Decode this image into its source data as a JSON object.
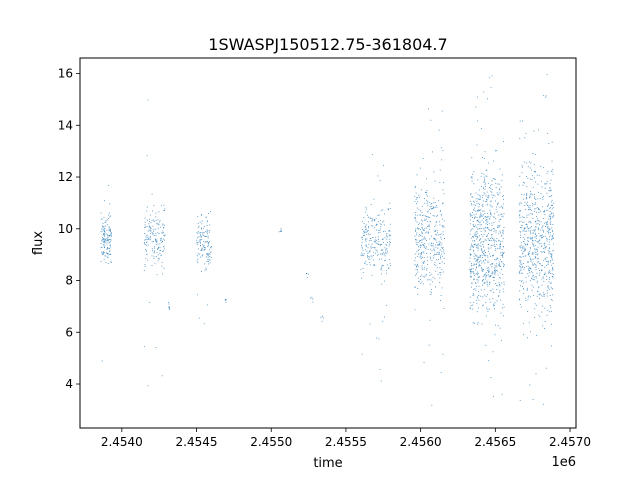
{
  "chart_data": {
    "type": "scatter",
    "title": "1SWASPJ150512.75-361804.7",
    "xlabel": "time",
    "ylabel": "flux",
    "x_offset_label": "1e6",
    "xlim": [
      2453720,
      2457040
    ],
    "ylim": [
      2.3,
      16.6
    ],
    "x_ticks": [
      {
        "value": 2454000,
        "label": "2.4540"
      },
      {
        "value": 2454500,
        "label": "2.4545"
      },
      {
        "value": 2455000,
        "label": "2.4550"
      },
      {
        "value": 2455500,
        "label": "2.4555"
      },
      {
        "value": 2456000,
        "label": "2.4560"
      },
      {
        "value": 2456500,
        "label": "2.4565"
      },
      {
        "value": 2457000,
        "label": "2.4570"
      }
    ],
    "y_ticks": [
      {
        "value": 4,
        "label": "4"
      },
      {
        "value": 6,
        "label": "6"
      },
      {
        "value": 8,
        "label": "8"
      },
      {
        "value": 10,
        "label": "10"
      },
      {
        "value": 12,
        "label": "12"
      },
      {
        "value": 14,
        "label": "14"
      },
      {
        "value": 16,
        "label": "16"
      }
    ],
    "grid": false,
    "series_color": "#1f77b4",
    "clusters": [
      {
        "t_start": 2453860,
        "t_end": 2453930,
        "flux_center": 9.6,
        "flux_low": 7.8,
        "flux_high": 11.3,
        "outlier_low": 3.6,
        "outlier_high": 15.9,
        "density": 140
      },
      {
        "t_start": 2454150,
        "t_end": 2454290,
        "flux_center": 9.7,
        "flux_low": 7.4,
        "flux_high": 11.9,
        "outlier_low": 3.2,
        "outlier_high": 15.8,
        "density": 170
      },
      {
        "t_start": 2454310,
        "t_end": 2454320,
        "flux_center": 7.0,
        "flux_low": 6.6,
        "flux_high": 7.3,
        "outlier_low": 6.6,
        "outlier_high": 7.3,
        "density": 8
      },
      {
        "t_start": 2454500,
        "t_end": 2454600,
        "flux_center": 9.4,
        "flux_low": 7.6,
        "flux_high": 11.5,
        "outlier_low": 6.2,
        "outlier_high": 11.8,
        "density": 130
      },
      {
        "t_start": 2454690,
        "t_end": 2454700,
        "flux_center": 7.2,
        "flux_low": 6.9,
        "flux_high": 7.5,
        "outlier_low": 6.9,
        "outlier_high": 7.6,
        "density": 5
      },
      {
        "t_start": 2455050,
        "t_end": 2455070,
        "flux_center": 9.9,
        "flux_low": 9.6,
        "flux_high": 10.2,
        "outlier_low": 9.6,
        "outlier_high": 10.2,
        "density": 6
      },
      {
        "t_start": 2455230,
        "t_end": 2455250,
        "flux_center": 8.3,
        "flux_low": 7.9,
        "flux_high": 8.7,
        "outlier_low": 7.9,
        "outlier_high": 8.7,
        "density": 5
      },
      {
        "t_start": 2455260,
        "t_end": 2455280,
        "flux_center": 7.3,
        "flux_low": 7.0,
        "flux_high": 7.6,
        "outlier_low": 7.0,
        "outlier_high": 7.6,
        "density": 4
      },
      {
        "t_start": 2455330,
        "t_end": 2455350,
        "flux_center": 6.5,
        "flux_low": 6.2,
        "flux_high": 6.8,
        "outlier_low": 6.2,
        "outlier_high": 6.8,
        "density": 4
      },
      {
        "t_start": 2455600,
        "t_end": 2455800,
        "flux_center": 9.5,
        "flux_low": 7.0,
        "flux_high": 12.2,
        "outlier_low": 3.5,
        "outlier_high": 14.2,
        "density": 240
      },
      {
        "t_start": 2455960,
        "t_end": 2456160,
        "flux_center": 9.6,
        "flux_low": 5.0,
        "flux_high": 13.5,
        "outlier_low": 3.0,
        "outlier_high": 15.0,
        "density": 380
      },
      {
        "t_start": 2456330,
        "t_end": 2456560,
        "flux_center": 9.5,
        "flux_low": 4.5,
        "flux_high": 15.8,
        "outlier_low": 3.3,
        "outlier_high": 16.0,
        "density": 700
      },
      {
        "t_start": 2456660,
        "t_end": 2456890,
        "flux_center": 9.6,
        "flux_low": 4.5,
        "flux_high": 15.8,
        "outlier_low": 3.0,
        "outlier_high": 16.0,
        "density": 650
      }
    ]
  }
}
